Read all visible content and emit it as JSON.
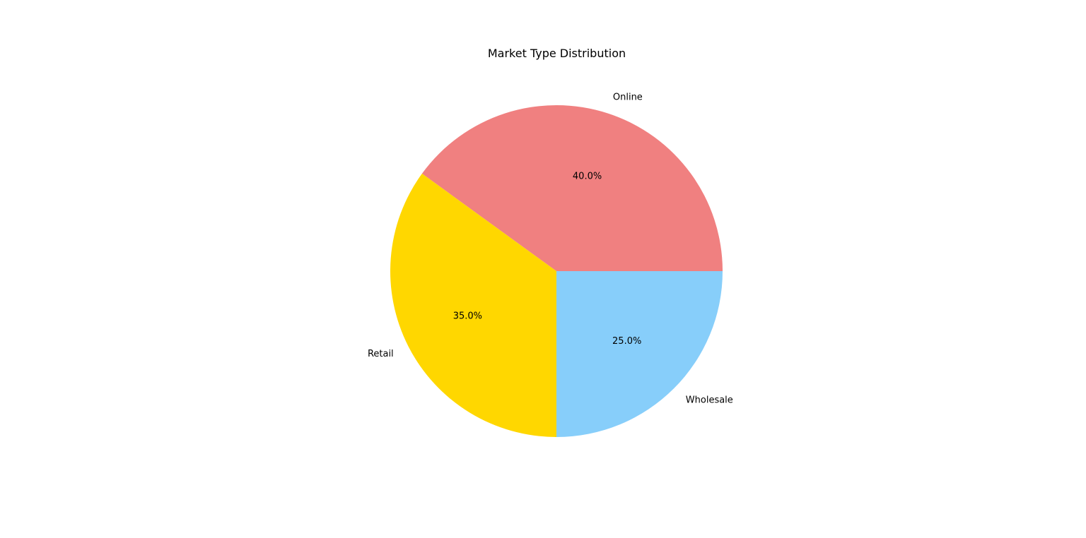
{
  "chart_data": {
    "type": "pie",
    "title": "Market Type Distribution",
    "categories": [
      "Online",
      "Retail",
      "Wholesale"
    ],
    "values": [
      40,
      35,
      25
    ],
    "percent_labels": [
      "40.0%",
      "35.0%",
      "25.0%"
    ],
    "colors": [
      "#f08080",
      "#ffd700",
      "#87cefa"
    ],
    "start_angle_deg": 0,
    "direction": "counterclockwise",
    "legend": "none",
    "grid": false
  }
}
